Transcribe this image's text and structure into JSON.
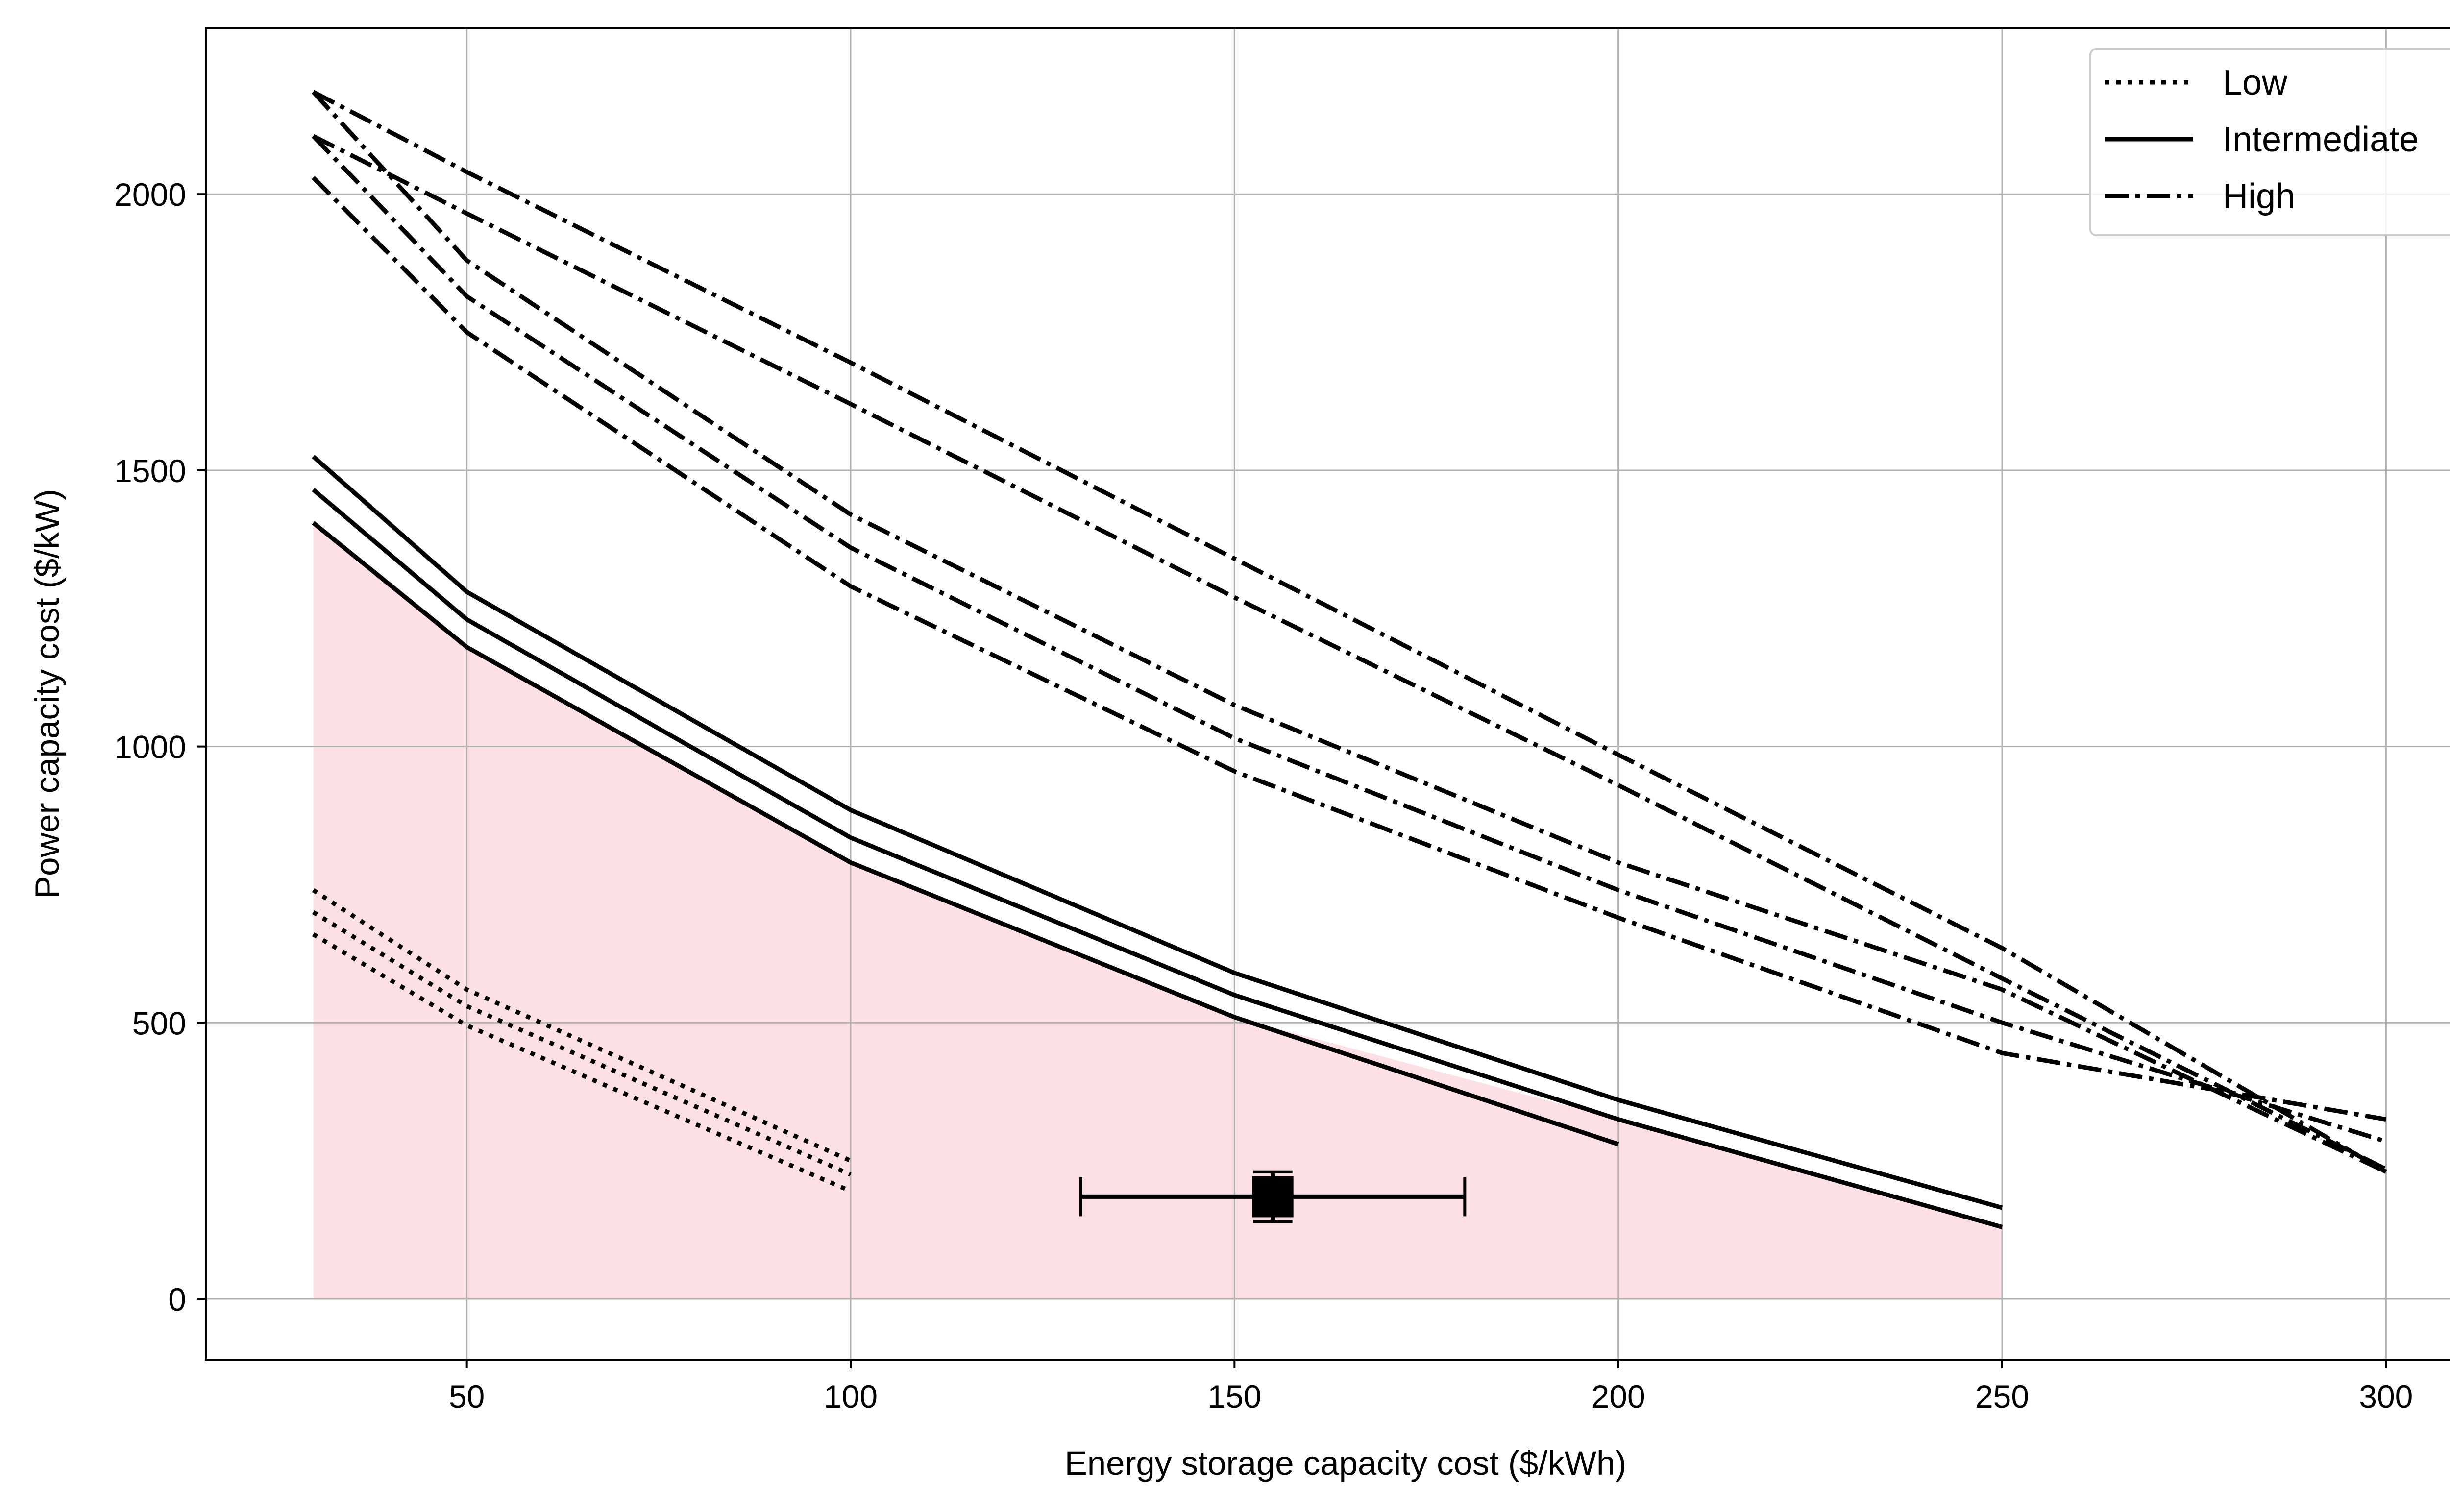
{
  "chart_data": {
    "type": "line",
    "title": "",
    "xlabel": "Energy storage capacity cost ($/kWh)",
    "ylabel": "Power capacity cost ($/kW)",
    "xlim": [
      16,
      313
    ],
    "ylim": [
      -110,
      2300
    ],
    "xticks": [
      50,
      100,
      150,
      200,
      250,
      300
    ],
    "yticks": [
      0,
      500,
      1000,
      1500,
      2000
    ],
    "grid": true,
    "legend": {
      "position": "top-right",
      "entries": [
        {
          "label": "Low",
          "style": "dotted"
        },
        {
          "label": "Intermediate",
          "style": "solid"
        },
        {
          "label": "High",
          "style": "dashdot"
        }
      ]
    },
    "shaded_region": {
      "color": "#fde0e6",
      "x": [
        30,
        50,
        100,
        150,
        200,
        200,
        250,
        250,
        30
      ],
      "y": [
        1405,
        1180,
        790,
        510,
        280,
        0,
        0,
        130,
        0
      ],
      "boundary": [
        {
          "x": 30,
          "y": 1405
        },
        {
          "x": 50,
          "y": 1180
        },
        {
          "x": 100,
          "y": 790
        },
        {
          "x": 150,
          "y": 510
        },
        {
          "x": 200,
          "y": 325
        },
        {
          "x": 250,
          "y": 130
        },
        {
          "x": 250,
          "y": 0
        },
        {
          "x": 30,
          "y": 0
        }
      ]
    },
    "series": [
      {
        "group": "Low",
        "style": "dotted",
        "x": [
          30,
          50,
          100
        ],
        "y": [
          740,
          560,
          250
        ]
      },
      {
        "group": "Low",
        "style": "dotted",
        "x": [
          30,
          50,
          100
        ],
        "y": [
          700,
          530,
          225
        ]
      },
      {
        "group": "Low",
        "style": "dotted",
        "x": [
          30,
          50,
          100
        ],
        "y": [
          660,
          495,
          195
        ]
      },
      {
        "group": "Intermediate",
        "style": "solid",
        "x": [
          30,
          50,
          100,
          150,
          200,
          250
        ],
        "y": [
          1525,
          1280,
          885,
          590,
          360,
          165
        ]
      },
      {
        "group": "Intermediate",
        "style": "solid",
        "x": [
          30,
          50,
          100,
          150,
          200,
          250
        ],
        "y": [
          1465,
          1230,
          835,
          550,
          325,
          130
        ]
      },
      {
        "group": "Intermediate",
        "style": "solid",
        "x": [
          30,
          50,
          100,
          150,
          200
        ],
        "y": [
          1405,
          1180,
          790,
          510,
          280
        ]
      },
      {
        "group": "High",
        "style": "dashdot",
        "x": [
          30,
          50,
          100,
          150,
          200,
          250,
          300
        ],
        "y": [
          2185,
          2040,
          1695,
          1340,
          985,
          635,
          230
        ]
      },
      {
        "group": "High",
        "style": "dashdot",
        "x": [
          30,
          50,
          100,
          150,
          200,
          250,
          300
        ],
        "y": [
          2105,
          1965,
          1620,
          1270,
          930,
          580,
          235
        ]
      },
      {
        "group": "High",
        "style": "dashdot",
        "x": [
          30,
          50,
          100,
          150,
          200,
          250,
          300
        ],
        "y": [
          2185,
          1880,
          1420,
          1075,
          790,
          560,
          230
        ]
      },
      {
        "group": "High",
        "style": "dashdot",
        "x": [
          30,
          50,
          100,
          150,
          200,
          250,
          300
        ],
        "y": [
          2105,
          1815,
          1360,
          1015,
          740,
          500,
          285
        ]
      },
      {
        "group": "High",
        "style": "dashdot",
        "x": [
          30,
          50,
          100,
          150,
          200,
          250,
          300
        ],
        "y": [
          2030,
          1750,
          1290,
          955,
          690,
          445,
          325
        ]
      }
    ],
    "error_point": {
      "x": 155,
      "y": 185,
      "xerr_low": 130,
      "xerr_high": 180,
      "yerr_low": 140,
      "yerr_high": 230,
      "marker": "square"
    }
  }
}
